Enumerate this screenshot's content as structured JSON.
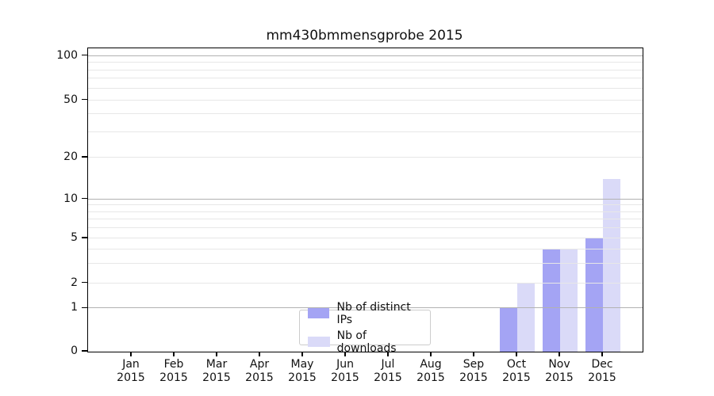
{
  "chart_data": {
    "type": "bar",
    "title": "mm430bmmensgprobe 2015",
    "categories": [
      "Jan 2015",
      "Feb 2015",
      "Mar 2015",
      "Apr 2015",
      "May 2015",
      "Jun 2015",
      "Jul 2015",
      "Aug 2015",
      "Sep 2015",
      "Oct 2015",
      "Nov 2015",
      "Dec 2015"
    ],
    "series": [
      {
        "name": "Nb of distinct IPs",
        "color": "#a4a4f4",
        "values": [
          0,
          0,
          0,
          0,
          0,
          0,
          0,
          0,
          0,
          1,
          4,
          5
        ]
      },
      {
        "name": "Nb of downloads",
        "color": "#dadaf8",
        "values": [
          0,
          0,
          0,
          0,
          0,
          0,
          0,
          0,
          0,
          2,
          4,
          14
        ]
      }
    ],
    "xlabel": "",
    "ylabel": "",
    "yscale": "log above 1, linear between 0 and 1",
    "ylim": [
      0,
      115
    ],
    "ytick_labels": [
      0,
      1,
      2,
      5,
      10,
      20,
      50,
      100
    ],
    "y_major_gridlines": [
      1,
      10,
      100
    ],
    "y_minor_gridlines": [
      2,
      3,
      4,
      5,
      6,
      7,
      8,
      9,
      20,
      30,
      40,
      50,
      60,
      70,
      80,
      90
    ],
    "grid": true,
    "legend_position": "lower center",
    "colors": {
      "major_grid": "#b2b2b2",
      "minor_grid": "#e7e7e7",
      "spine": "#000000",
      "text": "#111111"
    }
  }
}
